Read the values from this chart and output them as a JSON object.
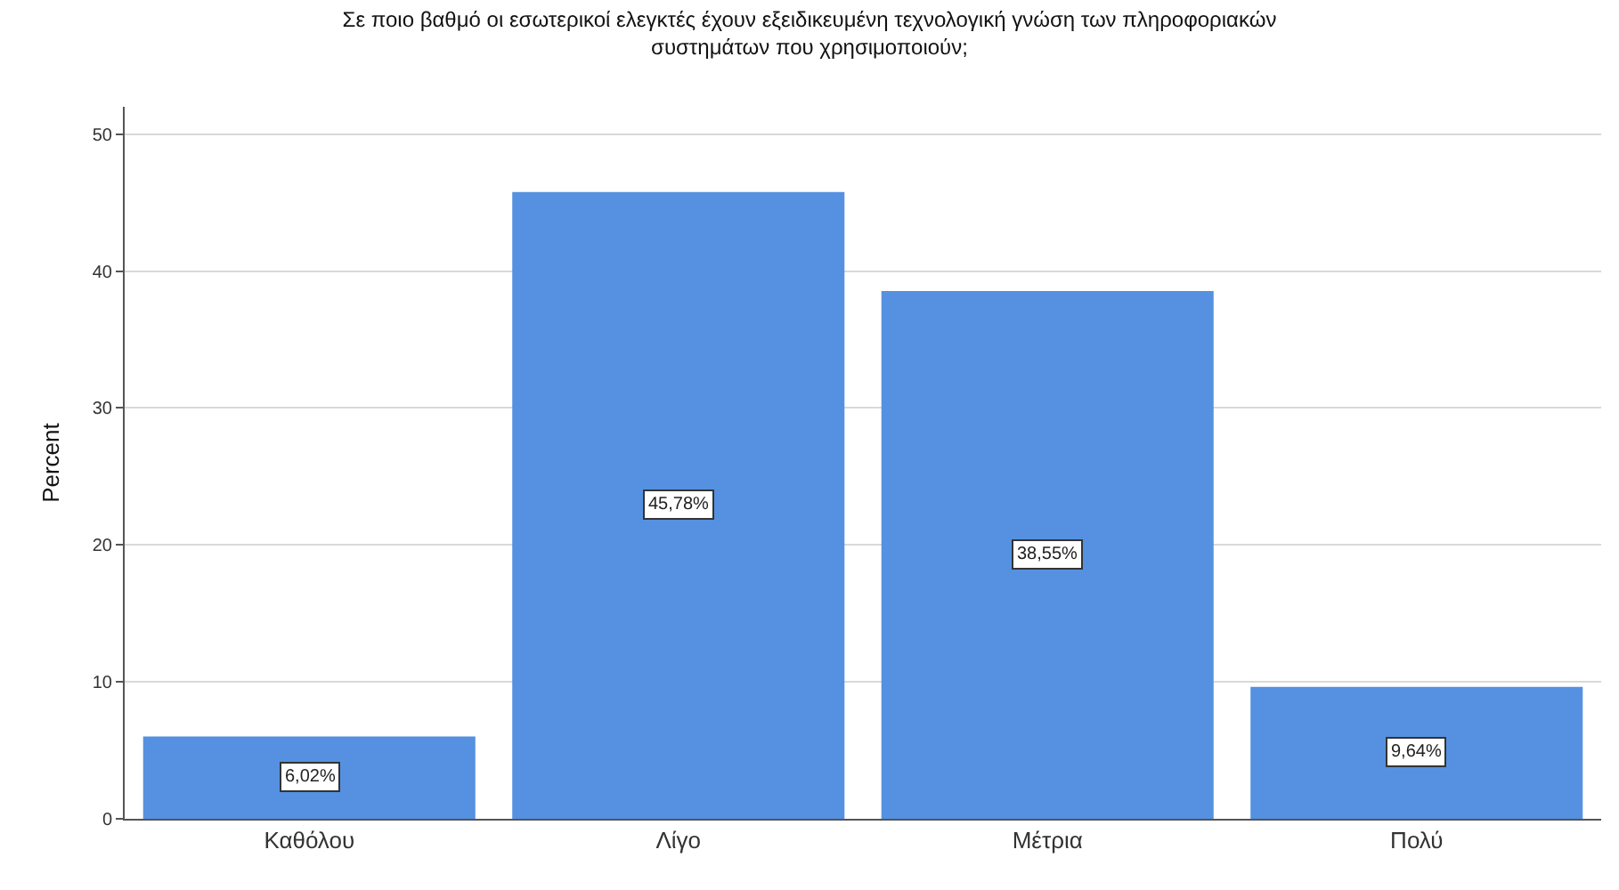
{
  "chart_data": {
    "type": "bar",
    "title": "Σε ποιο βαθμό οι εσωτερικοί ελεγκτές έχουν εξειδικευμένη τεχνολογική γνώση των πληροφοριακών συστημάτων που χρησιμοποιούν;",
    "ylabel": "Percent",
    "categories": [
      "Καθόλου",
      "Λίγο",
      "Μέτρια",
      "Πολύ"
    ],
    "values": [
      6.02,
      45.78,
      38.55,
      9.64
    ],
    "value_labels": [
      "6,02%",
      "45,78%",
      "38,55%",
      "9,64%"
    ],
    "color": "#5591e0",
    "ylim": [
      0,
      52
    ],
    "yticks": [
      0,
      10,
      20,
      30,
      40,
      50
    ],
    "grid": "y"
  }
}
